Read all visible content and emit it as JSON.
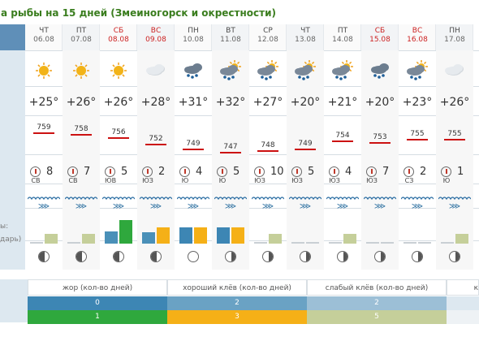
{
  "title": "а рыбы на 15 дней (Змеиногорск и окрестности)",
  "left_labels": {
    "bite": "ы:",
    "calendar": "дарь)"
  },
  "colors": {
    "good": "#4a90b8",
    "weak": "#3fae49",
    "accent": "#f5b017",
    "red_line": "#cc1111",
    "weekend": "#cc2222"
  },
  "days": [
    {
      "dow": "ЧТ",
      "date": "06.08",
      "weekend": false,
      "weather": "sun",
      "temp": "+25°",
      "pressure": "759",
      "wind_dir": "СВ",
      "wind_speed": "8",
      "bite_a": 0,
      "bite_b": 0.35,
      "moon": "waxing"
    },
    {
      "dow": "ПТ",
      "date": "07.08",
      "weekend": false,
      "weather": "sun",
      "temp": "+26°",
      "pressure": "758",
      "wind_dir": "СВ",
      "wind_speed": "7",
      "bite_a": 0,
      "bite_b": 0.35,
      "moon": "waxing"
    },
    {
      "dow": "СБ",
      "date": "08.08",
      "weekend": true,
      "weather": "sun",
      "temp": "+26°",
      "pressure": "756",
      "wind_dir": "ЮВ",
      "wind_speed": "5",
      "bite_a": 0.45,
      "bite_b": 0.85,
      "moon": "waxing"
    },
    {
      "dow": "ВС",
      "date": "09.08",
      "weekend": true,
      "weather": "cloud",
      "temp": "+28°",
      "pressure": "752",
      "wind_dir": "ЮЗ",
      "wind_speed": "2",
      "bite_a": 0.4,
      "bite_b": 0.6,
      "moon": "waxing"
    },
    {
      "dow": "ПН",
      "date": "10.08",
      "weekend": false,
      "weather": "rain",
      "temp": "+31°",
      "pressure": "749",
      "wind_dir": "Ю",
      "wind_speed": "4",
      "bite_a": 0.6,
      "bite_b": 0.6,
      "moon": "full"
    },
    {
      "dow": "ВТ",
      "date": "11.08",
      "weekend": false,
      "weather": "sunrain",
      "temp": "+32°",
      "pressure": "747",
      "wind_dir": "Ю",
      "wind_speed": "5",
      "bite_a": 0.6,
      "bite_b": 0.6,
      "moon": "waning"
    },
    {
      "dow": "СР",
      "date": "12.08",
      "weekend": false,
      "weather": "sunrain",
      "temp": "+27°",
      "pressure": "748",
      "wind_dir": "ЮЗ",
      "wind_speed": "10",
      "bite_a": 0,
      "bite_b": 0.35,
      "moon": "waning"
    },
    {
      "dow": "ЧТ",
      "date": "13.08",
      "weekend": false,
      "weather": "sunrain",
      "temp": "+20°",
      "pressure": "749",
      "wind_dir": "ЮЗ",
      "wind_speed": "5",
      "bite_a": 0,
      "bite_b": 0,
      "moon": "waning"
    },
    {
      "dow": "ПТ",
      "date": "14.08",
      "weekend": false,
      "weather": "sunrain",
      "temp": "+21°",
      "pressure": "754",
      "wind_dir": "ЮЗ",
      "wind_speed": "4",
      "bite_a": 0,
      "bite_b": 0.35,
      "moon": "waning"
    },
    {
      "dow": "СБ",
      "date": "15.08",
      "weekend": true,
      "weather": "rain",
      "temp": "+20°",
      "pressure": "753",
      "wind_dir": "ЮЗ",
      "wind_speed": "7",
      "bite_a": 0,
      "bite_b": 0,
      "moon": "waning"
    },
    {
      "dow": "ВС",
      "date": "16.08",
      "weekend": true,
      "weather": "sunrain",
      "temp": "+23°",
      "pressure": "755",
      "wind_dir": "СЗ",
      "wind_speed": "2",
      "bite_a": 0,
      "bite_b": 0,
      "moon": "waning"
    },
    {
      "dow": "ПН",
      "date": "17.08",
      "weekend": false,
      "weather": "cloud",
      "temp": "+26°",
      "pressure": "755",
      "wind_dir": "Ю",
      "wind_speed": "1",
      "bite_a": 0,
      "bite_b": 0.35,
      "moon": "waning"
    }
  ],
  "legend": {
    "headers": [
      "жор (кол-во дней)",
      "хороший клёв (кол-во дней)",
      "слабый клёв (кол-во дней)",
      "к"
    ],
    "row1": [
      "0",
      "2",
      "2"
    ],
    "row2": [
      "1",
      "3",
      "5"
    ]
  }
}
